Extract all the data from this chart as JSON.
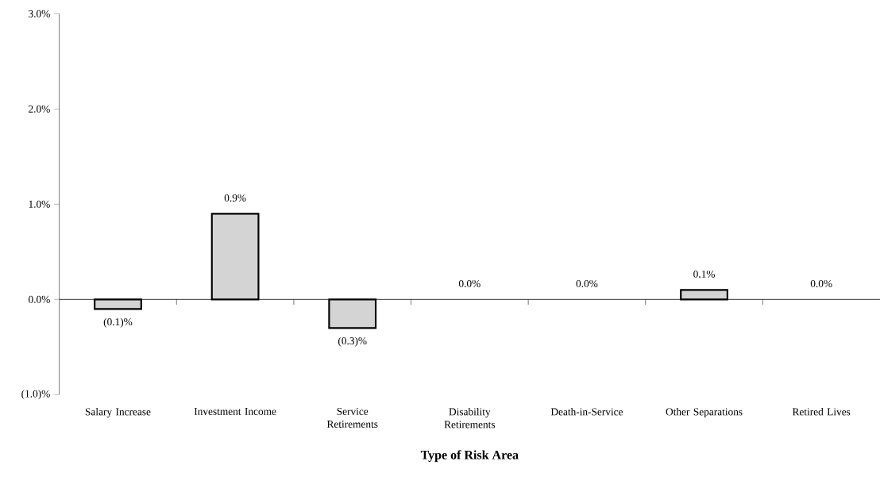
{
  "chart_data": {
    "type": "bar",
    "xlabel": "Type of Risk Area",
    "categories": [
      "Salary Increase",
      "Investment Income",
      "Service Retirements",
      "Disability Retirements",
      "Death-in-Service",
      "Other Separations",
      "Retired Lives"
    ],
    "values": [
      -0.1,
      0.9,
      -0.3,
      0.0,
      0.0,
      0.1,
      0.0
    ],
    "value_labels": [
      "(0.1)%",
      "0.9%",
      "(0.3)%",
      "0.0%",
      "0.0%",
      "0.1%",
      "0.0%"
    ],
    "color": "#d4d4d4",
    "ylim": [
      -1,
      3
    ],
    "yticks": [
      {
        "value": -1,
        "label": "(1.0)%"
      },
      {
        "value": 0,
        "label": "0.0%"
      },
      {
        "value": 1,
        "label": "1.0%"
      },
      {
        "value": 2,
        "label": "2.0%"
      },
      {
        "value": 3,
        "label": "3.0%"
      }
    ]
  }
}
